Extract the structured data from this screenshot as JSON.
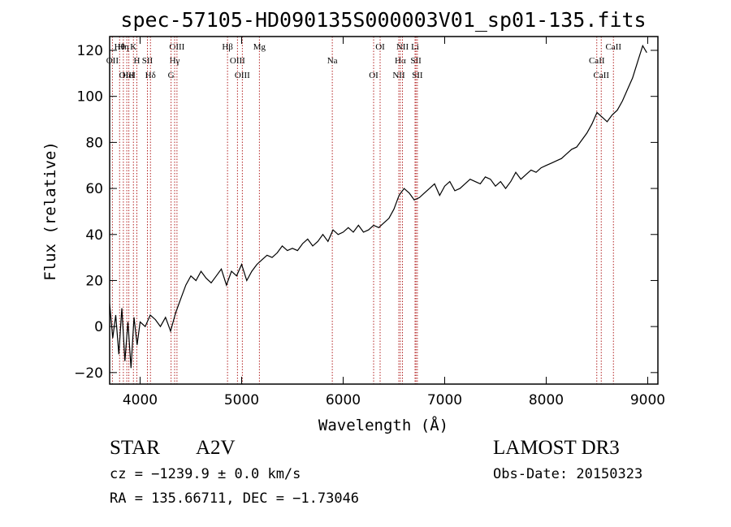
{
  "chart_data": {
    "type": "line",
    "title": "spec-57105-HD090135S000003V01_sp01-135.fits",
    "xlabel": "Wavelength (Å)",
    "ylabel": "Flux (relative)",
    "xlim": [
      3700,
      9100
    ],
    "ylim": [
      -25,
      126
    ],
    "x_ticks": [
      4000,
      5000,
      6000,
      7000,
      8000,
      9000
    ],
    "y_ticks": [
      -20,
      0,
      20,
      40,
      60,
      80,
      100,
      120
    ],
    "grid": false,
    "series": [
      {
        "x": [
          3700,
          3730,
          3760,
          3790,
          3820,
          3850,
          3880,
          3910,
          3940,
          3970,
          4000,
          4050,
          4100,
          4150,
          4200,
          4250,
          4300,
          4350,
          4400,
          4450,
          4500,
          4550,
          4600,
          4650,
          4700,
          4750,
          4800,
          4850,
          4900,
          4950,
          5000,
          5050,
          5100,
          5150,
          5200,
          5250,
          5300,
          5350,
          5400,
          5450,
          5500,
          5550,
          5600,
          5650,
          5700,
          5750,
          5800,
          5850,
          5900,
          5950,
          6000,
          6050,
          6100,
          6150,
          6200,
          6250,
          6300,
          6350,
          6400,
          6450,
          6500,
          6550,
          6600,
          6650,
          6700,
          6750,
          6800,
          6850,
          6900,
          6950,
          7000,
          7050,
          7100,
          7150,
          7200,
          7250,
          7300,
          7350,
          7400,
          7450,
          7500,
          7550,
          7600,
          7650,
          7700,
          7750,
          7800,
          7850,
          7900,
          7950,
          8000,
          8050,
          8100,
          8150,
          8200,
          8250,
          8300,
          8350,
          8400,
          8450,
          8500,
          8550,
          8600,
          8650,
          8700,
          8750,
          8800,
          8850,
          8900,
          8950,
          8990
        ],
        "y": [
          10,
          -5,
          5,
          -12,
          8,
          -15,
          2,
          -18,
          4,
          -8,
          2,
          0,
          5,
          3,
          0,
          4,
          -2,
          6,
          12,
          18,
          22,
          20,
          24,
          21,
          19,
          22,
          25,
          18,
          24,
          22,
          27,
          20,
          24,
          27,
          29,
          31,
          30,
          32,
          35,
          33,
          34,
          33,
          36,
          38,
          35,
          37,
          40,
          37,
          42,
          40,
          41,
          43,
          41,
          44,
          41,
          42,
          44,
          43,
          45,
          47,
          51,
          57,
          60,
          58,
          55,
          56,
          58,
          60,
          62,
          57,
          61,
          63,
          59,
          60,
          62,
          64,
          63,
          62,
          65,
          64,
          61,
          63,
          60,
          63,
          67,
          64,
          66,
          68,
          67,
          69,
          70,
          71,
          72,
          73,
          75,
          77,
          78,
          81,
          84,
          88,
          93,
          91,
          89,
          92,
          94,
          98,
          103,
          108,
          115,
          122,
          119
        ]
      }
    ],
    "lines": [
      {
        "name": "Hθ",
        "x": 3798
      },
      {
        "name": "OII",
        "x": 3727
      },
      {
        "name": "OIII",
        "x": 3869
      },
      {
        "name": "K",
        "x": 3934
      },
      {
        "name": "H",
        "x": 3968
      },
      {
        "name": "HeI",
        "x": 3889
      },
      {
        "name": "Hη",
        "x": 3835
      },
      {
        "name": "SII",
        "x": 4072
      },
      {
        "name": "Hδ",
        "x": 4102
      },
      {
        "name": "OIII",
        "x": 4363
      },
      {
        "name": "Hγ",
        "x": 4340
      },
      {
        "name": "G",
        "x": 4305
      },
      {
        "name": "Hβ",
        "x": 4861
      },
      {
        "name": "OIII",
        "x": 4959
      },
      {
        "name": "OIII",
        "x": 5007
      },
      {
        "name": "Mg",
        "x": 5175
      },
      {
        "name": "Na",
        "x": 5893
      },
      {
        "name": "OI",
        "x": 6300
      },
      {
        "name": "OI",
        "x": 6364
      },
      {
        "name": "Hα",
        "x": 6563
      },
      {
        "name": "NII",
        "x": 6548
      },
      {
        "name": "NII",
        "x": 6584
      },
      {
        "name": "SII",
        "x": 6717
      },
      {
        "name": "SII",
        "x": 6731
      },
      {
        "name": "Li",
        "x": 6708
      },
      {
        "name": "CaII",
        "x": 8498
      },
      {
        "name": "CaII",
        "x": 8542
      },
      {
        "name": "CaII",
        "x": 8662
      }
    ]
  },
  "info": {
    "object_class": "STAR",
    "subclass": "A2V",
    "survey": "LAMOST DR3",
    "cz": "cz = −1239.9 ± 0.0 km/s",
    "obs_date": "Obs-Date: 20150323",
    "coords": "RA = 135.66711, DEC =  −1.73046"
  },
  "colors": {
    "spectrum": "#000000",
    "line_markers": "#b22222"
  }
}
